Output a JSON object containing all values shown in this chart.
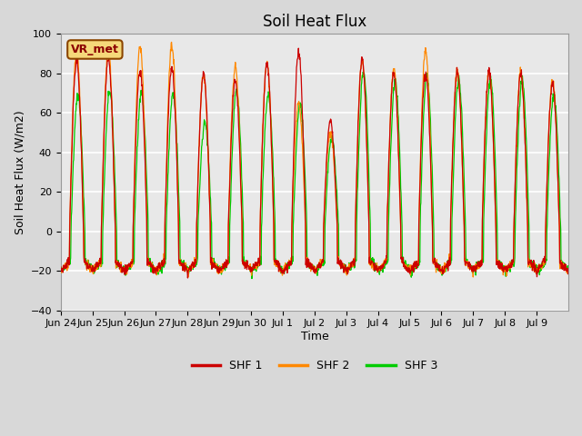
{
  "title": "Soil Heat Flux",
  "ylabel": "Soil Heat Flux (W/m2)",
  "xlabel": "Time",
  "ylim": [
    -40,
    100
  ],
  "fig_facecolor": "#d8d8d8",
  "ax_facecolor": "#e8e8e8",
  "grid_color": "#ffffff",
  "colors": {
    "SHF 1": "#cc0000",
    "SHF 2": "#ff8800",
    "SHF 3": "#00cc00"
  },
  "legend_label": "VR_met",
  "x_tick_labels": [
    "Jun 24",
    "Jun 25",
    "Jun 26",
    "Jun 27",
    "Jun 28",
    "Jun 29",
    "Jun 30",
    "Jul 1",
    "Jul 2",
    "Jul 3",
    "Jul 4",
    "Jul 5",
    "Jul 6",
    "Jul 7",
    "Jul 8",
    "Jul 9"
  ],
  "yticks": [
    -40,
    -20,
    0,
    20,
    40,
    60,
    80,
    100
  ],
  "n_days": 16,
  "peaks_shf1": [
    86,
    88,
    81,
    83,
    80,
    76,
    85,
    91,
    56,
    87,
    80,
    80,
    81,
    81,
    80,
    75
  ],
  "peaks_shf2": [
    91,
    92,
    94,
    94,
    79,
    83,
    85,
    65,
    50,
    86,
    82,
    91,
    81,
    81,
    81,
    76
  ],
  "peaks_shf3": [
    69,
    71,
    70,
    69,
    54,
    71,
    69,
    64,
    47,
    81,
    76,
    79,
    77,
    77,
    77,
    69
  ]
}
